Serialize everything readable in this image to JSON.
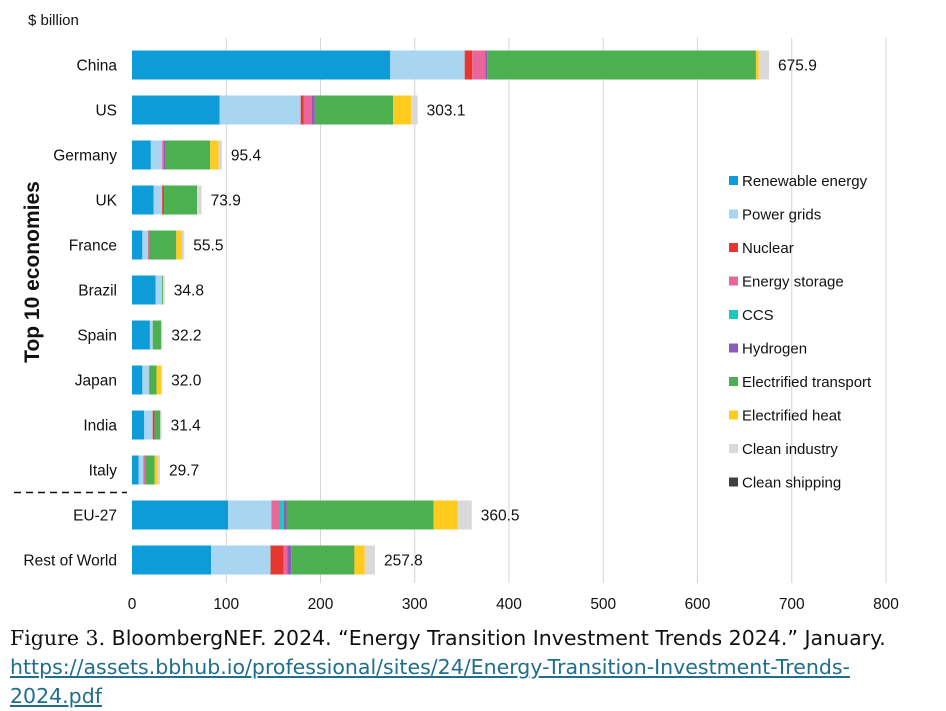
{
  "chart_data": {
    "type": "bar",
    "orientation": "horizontal",
    "stacked": true,
    "unit_label": "$ billion",
    "ylabel": "Top 10 economies",
    "xlim": [
      0,
      800
    ],
    "xticks": [
      "0",
      "100",
      "200",
      "300",
      "400",
      "500",
      "600",
      "700",
      "800"
    ],
    "grid": "vertical",
    "legend_position": "right",
    "categories": [
      "China",
      "US",
      "Germany",
      "UK",
      "France",
      "Brazil",
      "Spain",
      "Japan",
      "India",
      "Italy",
      "EU-27",
      "Rest of World"
    ],
    "totals": [
      "675.9",
      "303.1",
      "95.4",
      "73.9",
      "55.5",
      "34.8",
      "32.2",
      "32.0",
      "31.4",
      "29.7",
      "360.5",
      "257.8"
    ],
    "total_values": [
      675.9,
      303.1,
      95.4,
      73.9,
      55.5,
      34.8,
      32.2,
      32.0,
      31.4,
      29.7,
      360.5,
      257.8
    ],
    "separator_after_index": 9,
    "series": [
      {
        "name": "Renewable energy",
        "color": "#0E9CD8",
        "values": [
          274,
          93,
          20,
          23,
          11,
          25,
          19,
          11,
          13,
          7,
          102,
          84
        ]
      },
      {
        "name": "Power grids",
        "color": "#A8D5F0",
        "values": [
          79,
          86,
          12,
          9,
          6,
          7,
          3,
          7,
          9,
          5,
          46,
          63
        ]
      },
      {
        "name": "Nuclear",
        "color": "#E8352E",
        "values": [
          8,
          3,
          0,
          2,
          0,
          0,
          0,
          0,
          2,
          0,
          0,
          14
        ]
      },
      {
        "name": "Energy storage",
        "color": "#E8669A",
        "values": [
          14,
          9,
          2,
          0,
          1,
          0,
          0,
          1,
          0,
          2,
          8,
          4
        ]
      },
      {
        "name": "CCS",
        "color": "#17C9C0",
        "values": [
          0,
          0,
          0,
          0,
          0,
          0,
          0,
          0,
          0,
          0,
          5,
          0
        ]
      },
      {
        "name": "Hydrogen",
        "color": "#8A5CB5",
        "values": [
          2,
          3,
          1,
          0,
          0,
          0,
          0,
          0,
          0,
          0,
          3,
          4
        ]
      },
      {
        "name": "Electrified transport",
        "color": "#4CAF50",
        "values": [
          285,
          83,
          48,
          35,
          29,
          1,
          9,
          7,
          6,
          10,
          156,
          67
        ]
      },
      {
        "name": "Electrified heat",
        "color": "#FFCB1F",
        "values": [
          3,
          19,
          9,
          0,
          6,
          0,
          0,
          5,
          0,
          3,
          26,
          11
        ]
      },
      {
        "name": "Clean industry",
        "color": "#D9D9D9",
        "values": [
          10.9,
          7.1,
          3.4,
          4.9,
          2.5,
          1.8,
          1.2,
          1.0,
          1.4,
          2.7,
          14.5,
          10.8
        ]
      },
      {
        "name": "Clean shipping",
        "color": "#404040",
        "values": [
          0,
          0,
          0,
          0,
          0,
          0,
          0,
          0,
          0,
          0,
          0,
          0
        ]
      }
    ]
  },
  "caption": {
    "figure": "Figure 3.",
    "text": " BloombergNEF. 2024. “Energy Transition Investment Trends 2024.” January.",
    "url": "https://assets.bbhub.io/professional/sites/24/Energy-Transition-Investment-Trends-2024.pdf"
  }
}
